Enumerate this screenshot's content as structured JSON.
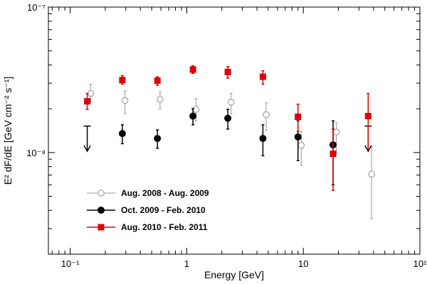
{
  "chart_data": {
    "type": "scatter",
    "title": "",
    "xlabel": "Energy [GeV]",
    "ylabel": "E² dF/dE [GeV cm⁻² s⁻¹]",
    "xscale": "log",
    "yscale": "log",
    "xlim": [
      0.065,
      100
    ],
    "ylim": [
      2e-09,
      1e-07
    ],
    "x_tick_labels": [
      {
        "value": 0.1,
        "label": "10⁻¹"
      },
      {
        "value": 1,
        "label": "1"
      },
      {
        "value": 10,
        "label": "10"
      },
      {
        "value": 100,
        "label": "10²"
      }
    ],
    "y_tick_labels": [
      {
        "value": 1e-08,
        "label": "10⁻⁸"
      },
      {
        "value": 1e-07,
        "label": "10⁻⁷"
      }
    ],
    "legend_position": "bottom-left",
    "series": [
      {
        "name": "Aug. 2008 - Aug. 2009",
        "color": "#999999",
        "marker": "open-circle",
        "points": [
          {
            "x": 0.15,
            "y": 2.55e-08,
            "ylo": 2.2e-08,
            "yhi": 2.95e-08
          },
          {
            "x": 0.295,
            "y": 2.28e-08,
            "ylo": 1.85e-08,
            "yhi": 2.65e-08
          },
          {
            "x": 0.59,
            "y": 2.32e-08,
            "ylo": 2e-08,
            "yhi": 2.6e-08
          },
          {
            "x": 1.2,
            "y": 1.98e-08,
            "ylo": 1.65e-08,
            "yhi": 2.35e-08
          },
          {
            "x": 2.4,
            "y": 2.22e-08,
            "ylo": 1.85e-08,
            "yhi": 2.55e-08
          },
          {
            "x": 4.8,
            "y": 1.82e-08,
            "ylo": 1.42e-08,
            "yhi": 2.2e-08
          },
          {
            "x": 9.6,
            "y": 1.12e-08,
            "ylo": 8.2e-09,
            "yhi": 1.4e-08
          },
          {
            "x": 19.2,
            "y": 1.38e-08,
            "ylo": 9.8e-09,
            "yhi": 1.6e-08
          },
          {
            "x": 38.5,
            "y": 7.1e-09,
            "ylo": 3.5e-09,
            "yhi": 1.1e-08
          }
        ],
        "upper_limits": []
      },
      {
        "name": "Oct. 2009 - Feb. 2010",
        "color": "#000000",
        "marker": "filled-circle",
        "points": [
          {
            "x": 0.28,
            "y": 1.35e-08,
            "ylo": 1.15e-08,
            "yhi": 1.55e-08
          },
          {
            "x": 0.56,
            "y": 1.25e-08,
            "ylo": 1.07e-08,
            "yhi": 1.43e-08
          },
          {
            "x": 1.13,
            "y": 1.78e-08,
            "ylo": 1.55e-08,
            "yhi": 2e-08
          },
          {
            "x": 2.25,
            "y": 1.72e-08,
            "ylo": 1.45e-08,
            "yhi": 1.98e-08
          },
          {
            "x": 4.5,
            "y": 1.25e-08,
            "ylo": 9.5e-09,
            "yhi": 1.55e-08
          },
          {
            "x": 9.0,
            "y": 1.28e-08,
            "ylo": 8.8e-09,
            "yhi": 1.65e-08
          },
          {
            "x": 18.0,
            "y": 1.13e-08,
            "ylo": 6e-09,
            "yhi": 1.65e-08
          }
        ],
        "upper_limits": [
          {
            "x": 0.14,
            "y": 1.52e-08,
            "y_arrow_tip": 1.02e-08
          },
          {
            "x": 36.0,
            "y": 1.52e-08,
            "y_arrow_tip": 1.02e-08
          }
        ]
      },
      {
        "name": "Aug. 2010 - Feb. 2011",
        "color": "#dd0000",
        "marker": "filled-square",
        "points": [
          {
            "x": 0.14,
            "y": 2.25e-08,
            "ylo": 1.98e-08,
            "yhi": 2.55e-08
          },
          {
            "x": 0.28,
            "y": 3.15e-08,
            "ylo": 2.95e-08,
            "yhi": 3.38e-08
          },
          {
            "x": 0.56,
            "y": 3.12e-08,
            "ylo": 2.9e-08,
            "yhi": 3.32e-08
          },
          {
            "x": 1.13,
            "y": 3.72e-08,
            "ylo": 3.5e-08,
            "yhi": 3.95e-08
          },
          {
            "x": 2.25,
            "y": 3.58e-08,
            "ylo": 3.25e-08,
            "yhi": 3.9e-08
          },
          {
            "x": 4.5,
            "y": 3.32e-08,
            "ylo": 2.95e-08,
            "yhi": 3.65e-08
          },
          {
            "x": 9.0,
            "y": 1.76e-08,
            "ylo": 1.4e-08,
            "yhi": 2.15e-08
          },
          {
            "x": 18.0,
            "y": 9.8e-09,
            "ylo": 5.5e-09,
            "yhi": 1.45e-08
          },
          {
            "x": 36.0,
            "y": 1.78e-08,
            "ylo": 1.05e-08,
            "yhi": 2.55e-08
          }
        ],
        "upper_limits": []
      }
    ]
  }
}
